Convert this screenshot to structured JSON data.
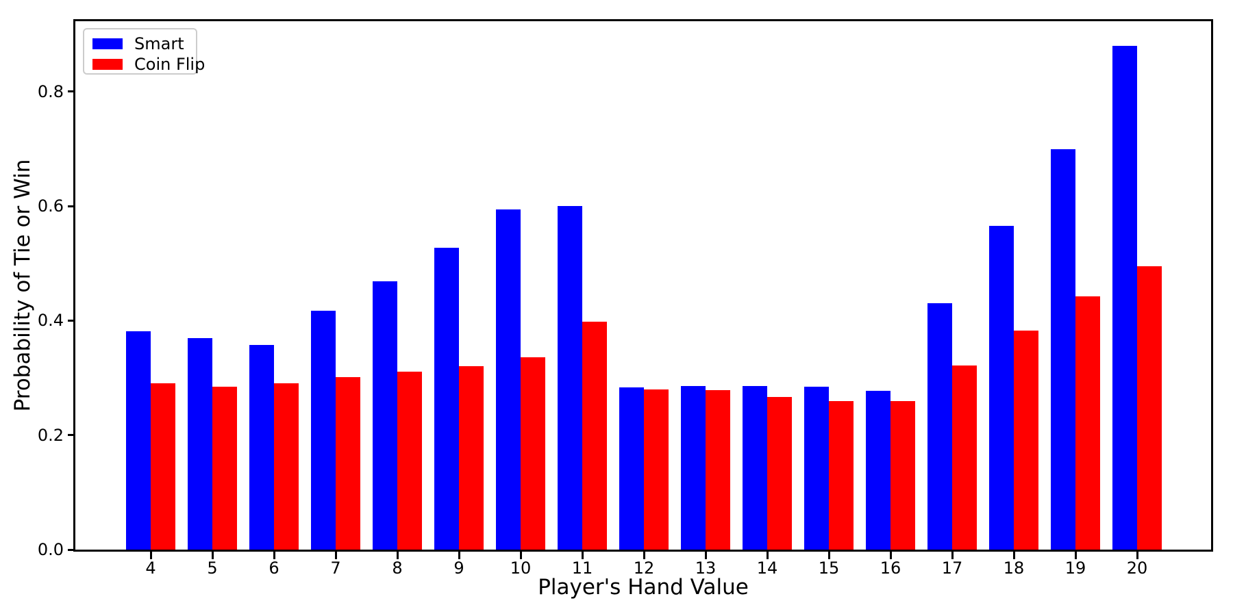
{
  "chart_data": {
    "type": "bar",
    "title": "",
    "xlabel": "Player's Hand Value",
    "ylabel": "Probability of Tie or Win",
    "categories": [
      "4",
      "5",
      "6",
      "7",
      "8",
      "9",
      "10",
      "11",
      "12",
      "13",
      "14",
      "15",
      "16",
      "17",
      "18",
      "19",
      "20"
    ],
    "series": [
      {
        "name": "Smart",
        "color": "#0000ff",
        "values": [
          0.381,
          0.369,
          0.357,
          0.417,
          0.469,
          0.527,
          0.594,
          0.6,
          0.283,
          0.286,
          0.286,
          0.284,
          0.277,
          0.431,
          0.565,
          0.7,
          0.88
        ]
      },
      {
        "name": "Coin Flip",
        "color": "#ff0000",
        "values": [
          0.29,
          0.285,
          0.29,
          0.301,
          0.311,
          0.321,
          0.336,
          0.398,
          0.28,
          0.279,
          0.267,
          0.26,
          0.26,
          0.322,
          0.382,
          0.442,
          0.495
        ]
      }
    ],
    "ylim": [
      0,
      0.923
    ],
    "yticks": [
      "0.0",
      "0.2",
      "0.4",
      "0.6",
      "0.8"
    ],
    "grid": false,
    "legend_position": "upper left",
    "axis_color": "#000000",
    "background_color": "#ffffff"
  }
}
